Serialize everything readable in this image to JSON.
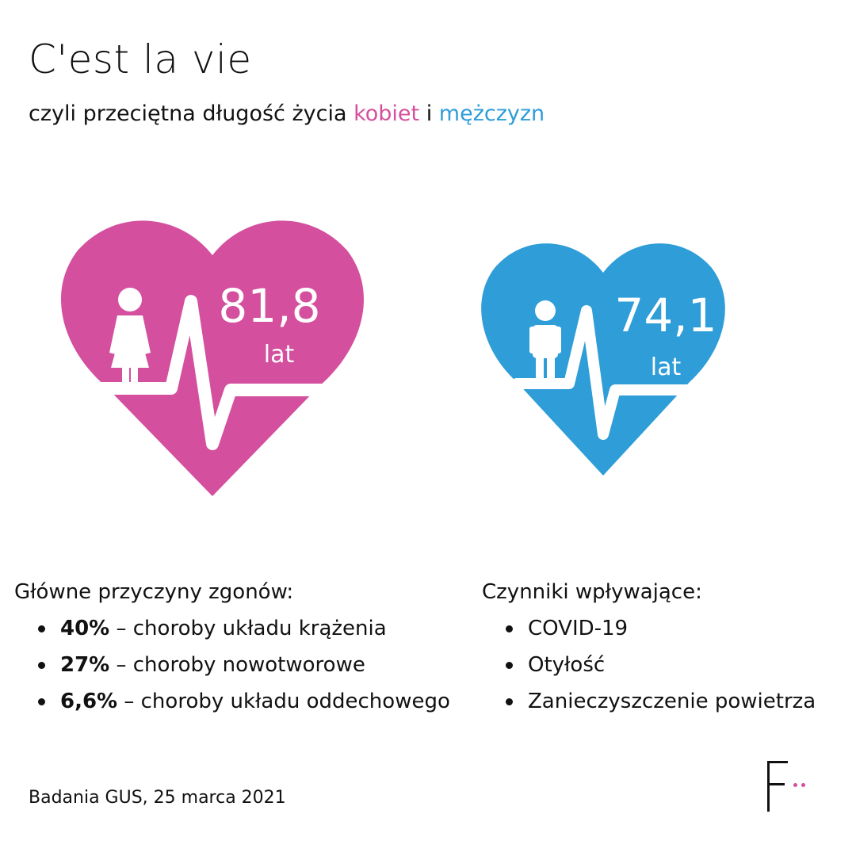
{
  "colors": {
    "pink": "#d44f9e",
    "blue": "#2e9dd8",
    "text": "#111111"
  },
  "title": "C'est la vie",
  "subtitle": {
    "prefix": "czyli przeciętna długość życia ",
    "women": "kobiet",
    "conj": " i ",
    "men": "mężczyzn"
  },
  "women": {
    "value": "81,8",
    "unit": "lat",
    "icon": "woman-icon"
  },
  "men": {
    "value": "74,1",
    "unit": "lat",
    "icon": "man-icon"
  },
  "causes": {
    "heading": "Główne przyczyny zgonów:",
    "items": [
      {
        "percent": "40%",
        "text": " – choroby układu krążenia"
      },
      {
        "percent": "27%",
        "text": " – choroby nowotworowe"
      },
      {
        "percent": "6,6%",
        "text": " – choroby układu oddechowego"
      }
    ]
  },
  "factors": {
    "heading": "Czynniki wpływające:",
    "items": [
      "COVID-19",
      "Otyłość",
      "Zanieczyszczenie powietrza"
    ]
  },
  "source": "Badania GUS, 25 marca 2021",
  "logo": {
    "icon": "f-logo-icon"
  }
}
